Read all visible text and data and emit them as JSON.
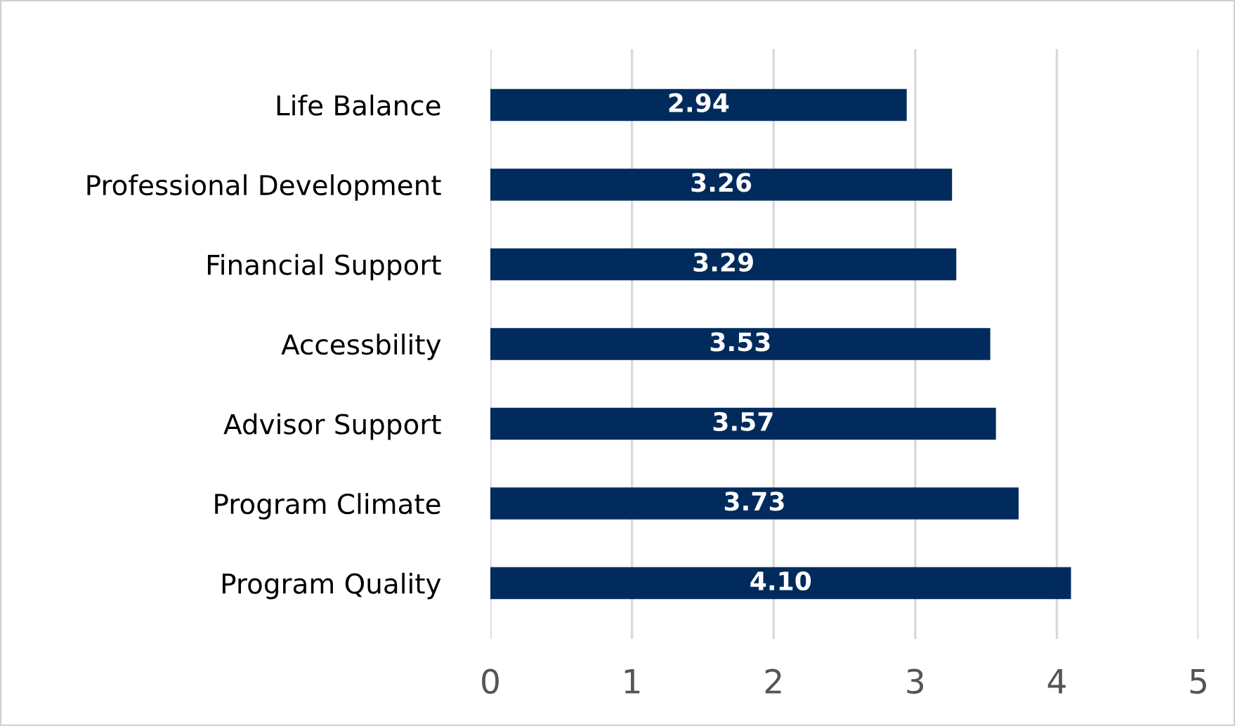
{
  "chart_data": {
    "type": "bar",
    "orientation": "horizontal",
    "categories": [
      "Life Balance",
      "Professional Development",
      "Financial Support",
      "Accessbility",
      "Advisor Support",
      "Program Climate",
      "Program Quality"
    ],
    "values": [
      2.94,
      3.26,
      3.29,
      3.53,
      3.57,
      3.73,
      4.1
    ],
    "value_labels": [
      "2.94",
      "3.26",
      "3.29",
      "3.53",
      "3.57",
      "3.73",
      "4.10"
    ],
    "color": "#002b5c",
    "xlim": [
      0,
      5
    ],
    "xticks": [
      0,
      1,
      2,
      3,
      4,
      5
    ],
    "grid": "x"
  }
}
